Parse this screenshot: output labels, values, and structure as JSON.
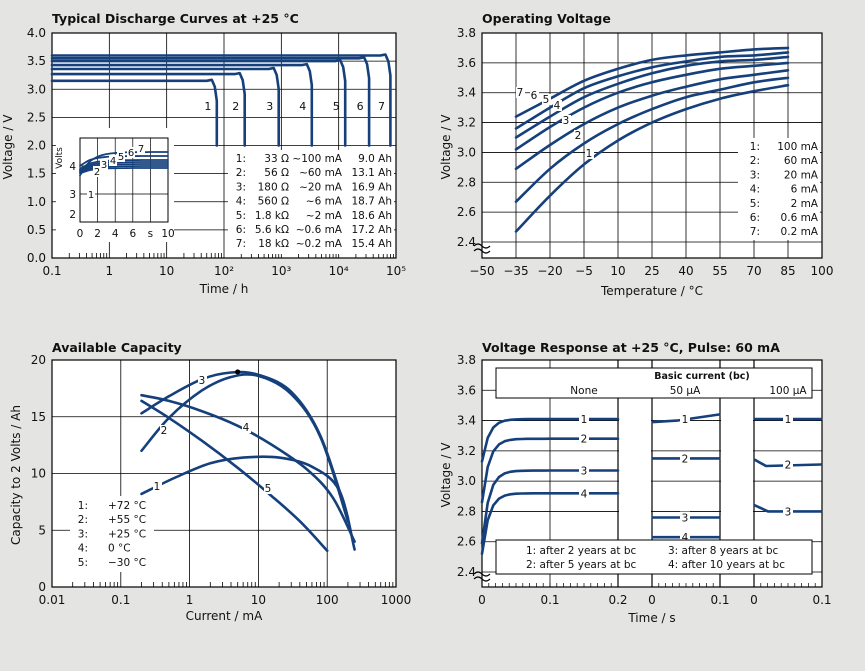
{
  "chart_data": [
    {
      "type": "line",
      "title": "Typical Discharge Curves at +25 °C",
      "xlabel": "Time / h",
      "ylabel": "Voltage / V",
      "xscale": "log",
      "xlim": [
        0.1,
        100000
      ],
      "ylim": [
        0.0,
        4.0
      ],
      "xticks": [
        "0.1",
        "1",
        "10",
        "10²",
        "10³",
        "10⁴",
        "10⁵"
      ],
      "yticks": [
        "0.0",
        "0.5",
        "1.0",
        "1.5",
        "2.0",
        "2.5",
        "3.0",
        "3.5",
        "4.0"
      ],
      "grid": true,
      "series": [
        {
          "name": "1",
          "plateau_V": 3.15,
          "end_h": 75
        },
        {
          "name": "2",
          "plateau_V": 3.27,
          "end_h": 230
        },
        {
          "name": "3",
          "plateau_V": 3.36,
          "end_h": 900
        },
        {
          "name": "4",
          "plateau_V": 3.43,
          "end_h": 3400
        },
        {
          "name": "5",
          "plateau_V": 3.5,
          "end_h": 13000
        },
        {
          "name": "6",
          "plateau_V": 3.55,
          "end_h": 34000
        },
        {
          "name": "7",
          "plateau_V": 3.6,
          "end_h": 80000
        }
      ],
      "legend": [
        [
          "1:",
          "33 Ω",
          "~100 mA",
          "9.0 Ah"
        ],
        [
          "2:",
          "56 Ω",
          "~60 mA",
          "13.1 Ah"
        ],
        [
          "3:",
          "180 Ω",
          "~20 mA",
          "16.9 Ah"
        ],
        [
          "4:",
          "560 Ω",
          "~6 mA",
          "18.7 Ah"
        ],
        [
          "5:",
          "1.8 kΩ",
          "~2 mA",
          "18.6 Ah"
        ],
        [
          "6:",
          "5.6 kΩ",
          "~0.6 mA",
          "17.2 Ah"
        ],
        [
          "7:",
          "18 kΩ",
          "~0.2 mA",
          "15.4 Ah"
        ]
      ],
      "legend_position": "bottom-right",
      "inset": {
        "xlabel": "s",
        "ylabel": "Volts",
        "xticks": [
          "0",
          "2",
          "4",
          "6",
          "s",
          "10"
        ],
        "yticks": [
          "2",
          "3",
          "4"
        ],
        "series_names": [
          "1",
          "2",
          "3",
          "4",
          "5",
          "6",
          "7"
        ]
      }
    },
    {
      "type": "line",
      "title": "Operating Voltage",
      "xlabel": "Temperature / °C",
      "ylabel": "Voltage / V",
      "xlim": [
        -50,
        100
      ],
      "ylim": [
        2.4,
        3.8
      ],
      "xticks": [
        "−50",
        "−35",
        "−20",
        "−5",
        "10",
        "25",
        "40",
        "55",
        "70",
        "85",
        "100"
      ],
      "yticks": [
        "2.4",
        "2.6",
        "2.8",
        "3.0",
        "3.2",
        "3.4",
        "3.6",
        "3.8"
      ],
      "grid": true,
      "x": [
        -35,
        -20,
        -5,
        10,
        25,
        40,
        55,
        70,
        85
      ],
      "series": [
        {
          "name": "1",
          "values": [
            2.47,
            2.71,
            2.92,
            3.08,
            3.2,
            3.29,
            3.36,
            3.41,
            3.45
          ]
        },
        {
          "name": "2",
          "values": [
            2.67,
            2.89,
            3.06,
            3.19,
            3.29,
            3.37,
            3.42,
            3.47,
            3.5
          ]
        },
        {
          "name": "3",
          "values": [
            2.89,
            3.05,
            3.19,
            3.3,
            3.38,
            3.44,
            3.49,
            3.52,
            3.55
          ]
        },
        {
          "name": "4",
          "values": [
            3.02,
            3.17,
            3.3,
            3.4,
            3.47,
            3.52,
            3.56,
            3.58,
            3.6
          ]
        },
        {
          "name": "5",
          "values": [
            3.1,
            3.24,
            3.37,
            3.46,
            3.53,
            3.58,
            3.61,
            3.62,
            3.64
          ]
        },
        {
          "name": "6",
          "values": [
            3.16,
            3.3,
            3.43,
            3.51,
            3.57,
            3.61,
            3.64,
            3.65,
            3.67
          ]
        },
        {
          "name": "7",
          "values": [
            3.24,
            3.36,
            3.48,
            3.56,
            3.62,
            3.65,
            3.67,
            3.69,
            3.7
          ]
        }
      ],
      "legend": [
        [
          "1:",
          "100 mA"
        ],
        [
          "2:",
          "60 mA"
        ],
        [
          "3:",
          "20 mA"
        ],
        [
          "4:",
          "6 mA"
        ],
        [
          "5:",
          "2 mA"
        ],
        [
          "6:",
          "0.6 mA"
        ],
        [
          "7:",
          "0.2 mA"
        ]
      ],
      "legend_position": "bottom-right"
    },
    {
      "type": "line",
      "title": "Available Capacity",
      "xlabel": "Current / mA",
      "ylabel": "Capacity to 2 Volts / Ah",
      "xscale": "log",
      "xlim": [
        0.01,
        1000
      ],
      "ylim": [
        0,
        20
      ],
      "xticks": [
        "0.01",
        "0.1",
        "1",
        "10",
        "100",
        "1000"
      ],
      "yticks": [
        "0",
        "5",
        "10",
        "15",
        "20"
      ],
      "grid": true,
      "series": [
        {
          "name": "1",
          "x": [
            0.2,
            0.6,
            2,
            6,
            20,
            60,
            150,
            250
          ],
          "values": [
            8.2,
            9.6,
            10.9,
            11.4,
            11.4,
            10.6,
            8.5,
            3.3
          ]
        },
        {
          "name": "2",
          "x": [
            0.2,
            0.5,
            1.5,
            4,
            10,
            30,
            80,
            200
          ],
          "values": [
            12.0,
            14.9,
            17.3,
            18.5,
            18.6,
            17.0,
            13.2,
            5.8
          ]
        },
        {
          "name": "3",
          "x": [
            0.2,
            0.5,
            1.5,
            4,
            10,
            30,
            80,
            200
          ],
          "values": [
            15.3,
            16.8,
            18.3,
            18.9,
            18.7,
            17.2,
            13.3,
            6.1
          ]
        },
        {
          "name": "4",
          "x": [
            0.2,
            0.5,
            1.5,
            5,
            15,
            50,
            120,
            250
          ],
          "values": [
            16.9,
            16.4,
            15.5,
            14.2,
            12.6,
            10.4,
            7.9,
            4.0
          ]
        },
        {
          "name": "5",
          "x": [
            0.2,
            0.5,
            1.5,
            5,
            15,
            40,
            100
          ],
          "values": [
            16.4,
            14.9,
            12.9,
            10.5,
            8.1,
            5.8,
            3.2
          ]
        }
      ],
      "legend": [
        [
          "1:",
          "+72 °C"
        ],
        [
          "2:",
          "+55 °C"
        ],
        [
          "3:",
          "+25 °C"
        ],
        [
          "4:",
          "0 °C"
        ],
        [
          "5:",
          "−30 °C"
        ]
      ],
      "legend_position": "bottom-left"
    },
    {
      "type": "line",
      "title": "Voltage Response at +25 °C, Pulse: 60 mA",
      "xlabel": "Time / s",
      "ylabel": "Voltage / V",
      "ylim": [
        2.4,
        3.8
      ],
      "yticks": [
        "2.4",
        "2.6",
        "2.8",
        "3.0",
        "3.2",
        "3.4",
        "3.6",
        "3.8"
      ],
      "grid": true,
      "header": "Basic current (bc)",
      "panels": [
        {
          "name": "None",
          "xticks": [
            "0",
            "0.1",
            "0.2"
          ],
          "levels": {
            "1": 3.41,
            "2": 3.28,
            "3": 3.07,
            "4": 2.92
          }
        },
        {
          "name": "50 µA",
          "xticks": [
            "0",
            "0.1"
          ],
          "levels": {
            "1": 3.41,
            "2": 3.15,
            "3": 2.76,
            "4": 2.63
          }
        },
        {
          "name": "100 µA",
          "xticks": [
            "0",
            "0.1"
          ],
          "levels": {
            "1": 3.41,
            "2": 3.11,
            "3": 2.8
          }
        }
      ],
      "legend": [
        "1: after 2 years at bc",
        "3: after 8 years at bc",
        "2: after 5 years at bc",
        "4: after 10 years at bc"
      ],
      "legend_position": "bottom"
    }
  ],
  "colors": {
    "curve": "#15407c",
    "background": "#e4e5e3",
    "plot": "#ffffff",
    "grid": "#000000"
  }
}
